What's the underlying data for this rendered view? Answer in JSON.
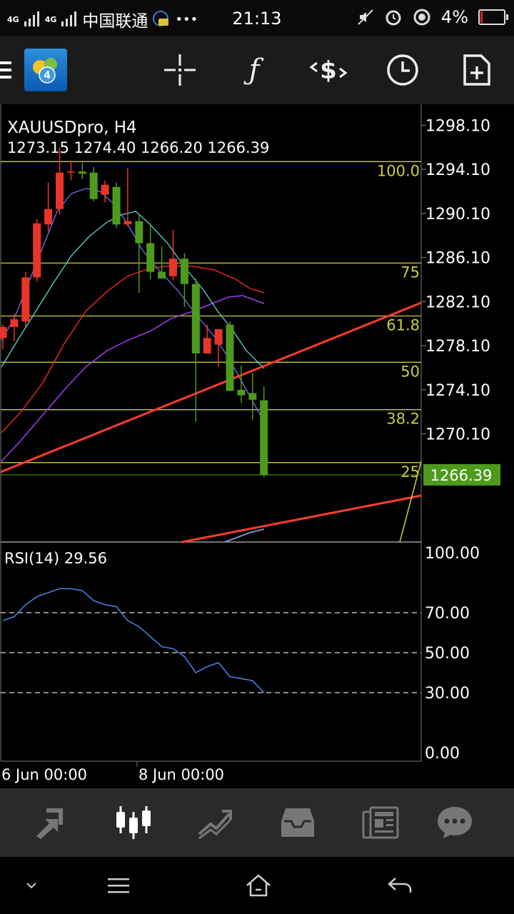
{
  "status": {
    "network_1": "4G",
    "network_2": "4G",
    "carrier": "中国联通",
    "more": "•••",
    "time": "21:13",
    "battery": "4%",
    "icons": [
      "signal-icon",
      "chat-notification-icon",
      "mute-icon",
      "alarm-icon",
      "location-icon",
      "battery-icon"
    ]
  },
  "toolbar": {
    "icons": [
      "menu-icon",
      "app-icon",
      "crosshair-icon",
      "function-icon",
      "trade-icon",
      "clock-icon",
      "new-order-icon"
    ],
    "app_badge": "4"
  },
  "chart": {
    "symbol_timeframe": "XAUUSDpro, H4",
    "ohlc": "1273.15 1274.40 1266.20 1266.39",
    "current_price": "1266.39",
    "price_ticks": [
      "1298.10",
      "1294.10",
      "1290.10",
      "1286.10",
      "1282.10",
      "1278.10",
      "1274.10",
      "1270.10"
    ],
    "fib_labels": [
      "100.0",
      "75",
      "61.8",
      "50",
      "38.2",
      "25"
    ],
    "indicator_label": "RSI(14) 29.56",
    "rsi_ticks": [
      "100.00",
      "70.00",
      "50.00",
      "30.00",
      "0.00"
    ],
    "time_labels": [
      "6 Jun 00:00",
      "8 Jun 00:00"
    ],
    "colors": {
      "bull": "#e8352a",
      "bear": "#4e9a1d",
      "fib": "#c9cc3e",
      "trend": "#ff3b2f",
      "rsi": "#4a86e8",
      "price_tag": "#4e9a1d"
    }
  },
  "chart_data": {
    "type": "candlestick",
    "symbol": "XAUUSDpro",
    "timeframe": "H4",
    "ylim": [
      1260.3,
      1300.0
    ],
    "candles": [
      {
        "o": 1278.8,
        "h": 1280.0,
        "l": 1277.8,
        "c": 1279.8
      },
      {
        "o": 1279.8,
        "h": 1281.0,
        "l": 1278.5,
        "c": 1280.5
      },
      {
        "o": 1280.3,
        "h": 1284.8,
        "l": 1279.8,
        "c": 1284.3
      },
      {
        "o": 1284.3,
        "h": 1289.6,
        "l": 1283.9,
        "c": 1289.2
      },
      {
        "o": 1289.1,
        "h": 1292.9,
        "l": 1288.5,
        "c": 1290.5
      },
      {
        "o": 1290.5,
        "h": 1296.1,
        "l": 1290.0,
        "c": 1293.8
      },
      {
        "o": 1293.8,
        "h": 1294.9,
        "l": 1293.1,
        "c": 1293.9
      },
      {
        "o": 1293.9,
        "h": 1294.7,
        "l": 1293.2,
        "c": 1293.7
      },
      {
        "o": 1293.8,
        "h": 1294.3,
        "l": 1291.2,
        "c": 1291.4
      },
      {
        "o": 1291.8,
        "h": 1293.1,
        "l": 1291.1,
        "c": 1292.7
      },
      {
        "o": 1292.5,
        "h": 1292.9,
        "l": 1288.8,
        "c": 1289.1
      },
      {
        "o": 1289.1,
        "h": 1294.2,
        "l": 1288.9,
        "c": 1289.4
      },
      {
        "o": 1289.4,
        "h": 1290.1,
        "l": 1282.9,
        "c": 1287.4
      },
      {
        "o": 1287.4,
        "h": 1289.1,
        "l": 1284.1,
        "c": 1284.8
      },
      {
        "o": 1284.8,
        "h": 1287.1,
        "l": 1284.2,
        "c": 1284.2
      },
      {
        "o": 1284.4,
        "h": 1288.6,
        "l": 1284.0,
        "c": 1286.0
      },
      {
        "o": 1286.0,
        "h": 1286.5,
        "l": 1281.6,
        "c": 1283.7
      },
      {
        "o": 1283.7,
        "h": 1284.2,
        "l": 1271.2,
        "c": 1277.4
      },
      {
        "o": 1277.4,
        "h": 1280.0,
        "l": 1277.4,
        "c": 1278.8
      },
      {
        "o": 1278.2,
        "h": 1279.6,
        "l": 1276.2,
        "c": 1279.6
      },
      {
        "o": 1280.0,
        "h": 1280.3,
        "l": 1274.0,
        "c": 1274.0
      },
      {
        "o": 1274.1,
        "h": 1276.3,
        "l": 1272.9,
        "c": 1273.6
      },
      {
        "o": 1273.8,
        "h": 1275.6,
        "l": 1271.4,
        "c": 1273.2
      },
      {
        "o": 1273.15,
        "h": 1274.4,
        "l": 1266.2,
        "c": 1266.39
      }
    ],
    "fibonacci_levels": [
      {
        "label": "100.0",
        "price": 1294.8
      },
      {
        "label": "75",
        "price": 1285.6
      },
      {
        "label": "61.8",
        "price": 1280.8
      },
      {
        "label": "50",
        "price": 1276.6
      },
      {
        "label": "38.2",
        "price": 1272.3
      },
      {
        "label": "25",
        "price": 1267.5
      }
    ],
    "rsi": {
      "period": 14,
      "value": 29.56,
      "ylim": [
        0,
        100
      ],
      "levels": [
        70,
        50,
        30
      ],
      "values": [
        66,
        68,
        74,
        78,
        80,
        82,
        82,
        81,
        76,
        74,
        73,
        66,
        63,
        58,
        53,
        52,
        48,
        40,
        43,
        45,
        38,
        37,
        36,
        30
      ]
    }
  },
  "tabbar": {
    "icons": [
      "quotes-icon",
      "chart-icon",
      "trade-icon",
      "history-icon",
      "news-icon",
      "chat-icon"
    ]
  },
  "navbar": {
    "icons": [
      "chevron-down-icon",
      "menu-icon",
      "home-icon",
      "back-icon"
    ]
  }
}
